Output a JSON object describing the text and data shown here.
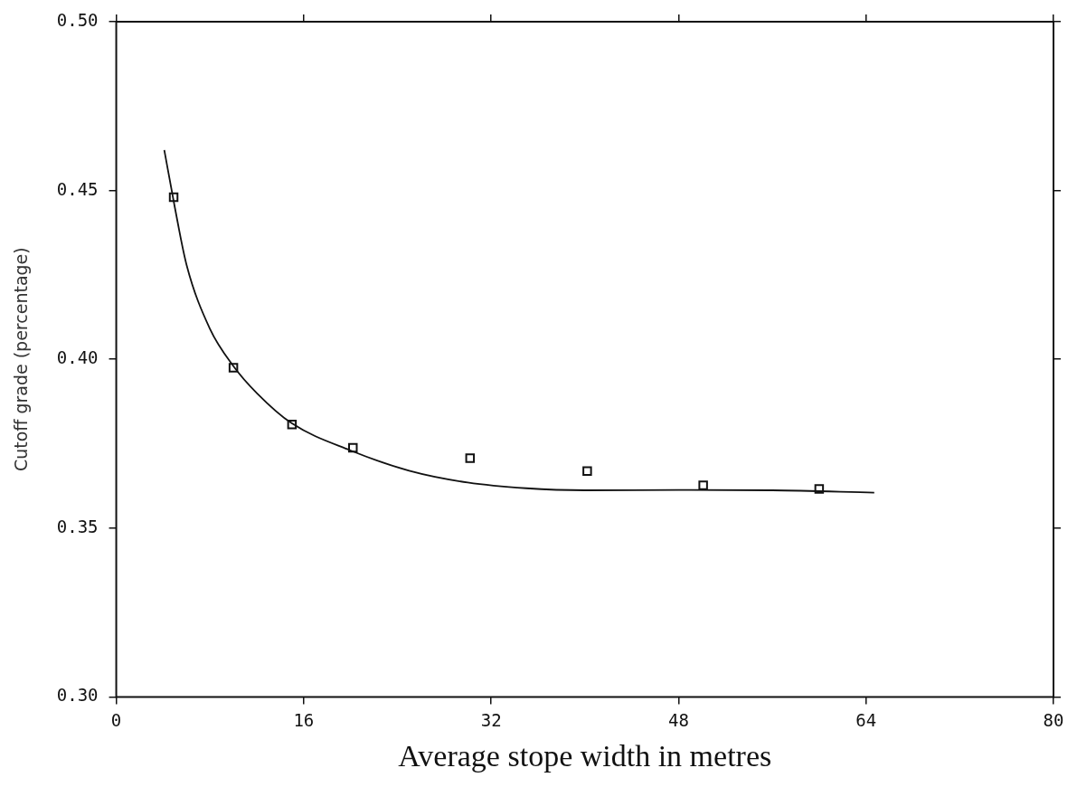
{
  "chart_data": {
    "type": "scatter",
    "xlabel": "Average stope width in metres",
    "ylabel": "Cutoff grade (percentage)",
    "xlim": [
      0,
      80
    ],
    "xticks": [
      0,
      16,
      32,
      48,
      64,
      80
    ],
    "ylim": [
      0.3,
      0.5
    ],
    "yticks": [
      {
        "value": 0.3,
        "label": "0.30"
      },
      {
        "value": 0.35,
        "label": "0.35"
      },
      {
        "value": 0.4,
        "label": "0.40"
      },
      {
        "value": 0.45,
        "label": "0.45"
      },
      {
        "value": 0.5,
        "label": "0.50"
      }
    ],
    "grid": false,
    "legend": false,
    "marker": "square",
    "series": [
      {
        "color": "#111111",
        "x": [
          4.9,
          10.0,
          15.0,
          20.2,
          30.2,
          40.2,
          50.1,
          60.0
        ],
        "values": [
          0.448,
          0.3975,
          0.3807,
          0.3738,
          0.3707,
          0.3669,
          0.3627,
          0.3616
        ]
      },
      {
        "type": "line",
        "color": "#111111",
        "marker": "none",
        "line_style": "solid",
        "x": [
          4.1,
          5,
          6,
          8,
          10,
          12,
          15,
          20,
          25,
          30,
          35,
          40,
          48,
          56,
          64.7
        ],
        "values": [
          0.462,
          0.445,
          0.428,
          0.409,
          0.398,
          0.39,
          0.381,
          0.373,
          0.367,
          0.3635,
          0.3618,
          0.3612,
          0.3613,
          0.3612,
          0.3605
        ]
      }
    ]
  }
}
